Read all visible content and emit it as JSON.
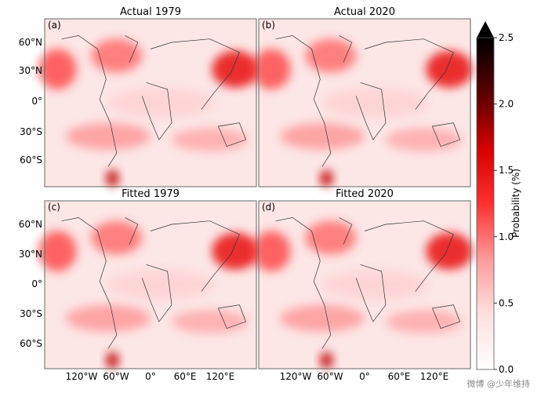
{
  "chart_data": {
    "type": "heatmap",
    "colorbar": {
      "label": "Probability (%)",
      "min": 0.0,
      "max": 2.5,
      "extend": "max",
      "ticks": [
        "0.0",
        "0.5",
        "1.0",
        "1.5",
        "2.0",
        "2.5"
      ],
      "colors": [
        "#ffffff",
        "#ffe0e0",
        "#ff9a9a",
        "#ff3030",
        "#d40000",
        "#5a0000",
        "#000000"
      ]
    },
    "xtick_labels": [
      "120°W",
      "60°W",
      "0°",
      "60°E",
      "120°E"
    ],
    "ytick_labels": [
      "60°N",
      "30°N",
      "0°",
      "30°S",
      "60°S"
    ],
    "panels": [
      {
        "letter": "(a)",
        "title": "Actual 1979"
      },
      {
        "letter": "(b)",
        "title": "Actual 2020"
      },
      {
        "letter": "(c)",
        "title": "Fitted 1979"
      },
      {
        "letter": "(d)",
        "title": "Fitted 2020"
      }
    ]
  },
  "watermark": "微博 @少年维持"
}
